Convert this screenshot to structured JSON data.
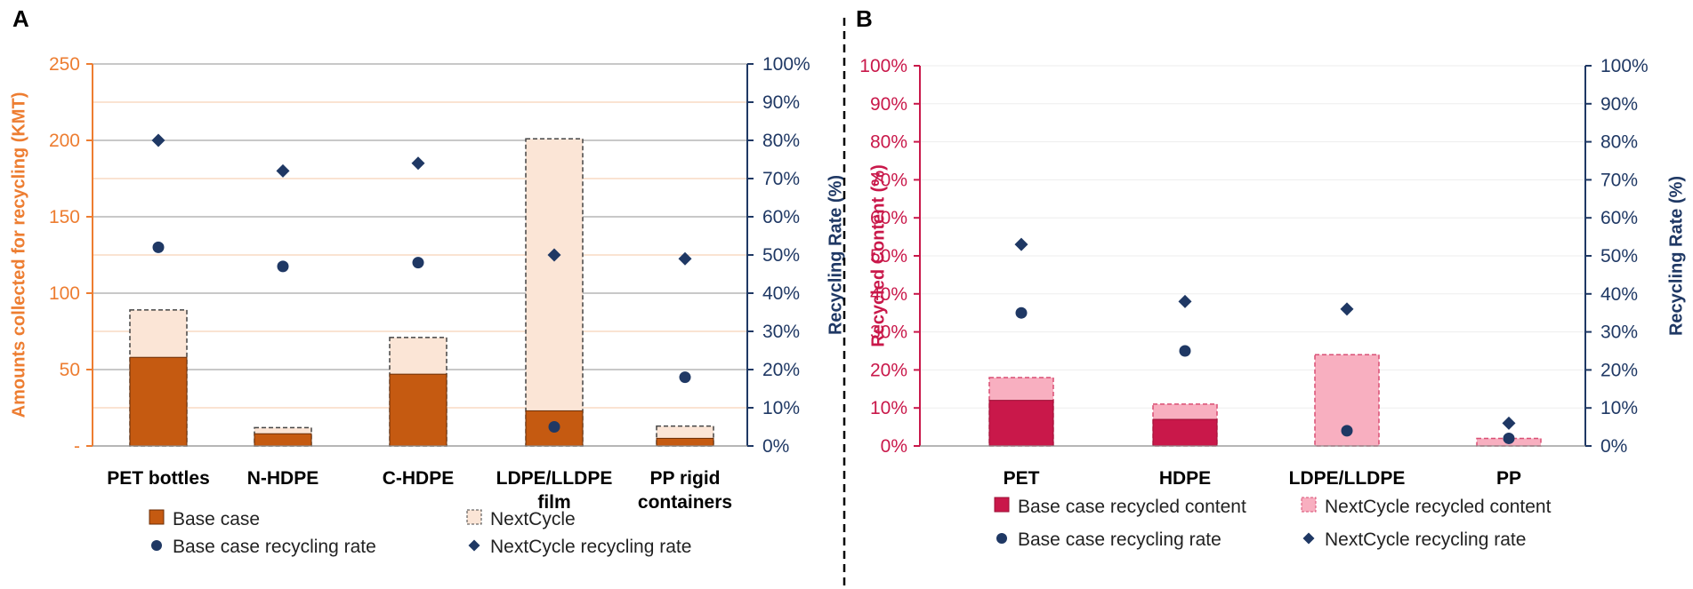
{
  "colors": {
    "orange": "#ED7D31",
    "brown": "#C55A11",
    "peach": "#FBE5D6",
    "navy": "#1F3864",
    "crimson": "#C9184A",
    "pink": "#F8AFC0",
    "divider": "#000000"
  },
  "chart_data": [
    {
      "panel": "A",
      "type": "bar",
      "stacked": true,
      "categories": [
        [
          "PET bottles"
        ],
        [
          "N-HDPE"
        ],
        [
          "C-HDPE"
        ],
        [
          "LDPE/LLDPE",
          "film"
        ],
        [
          "PP rigid",
          "containers"
        ]
      ],
      "series": [
        {
          "name": "Base case",
          "values": [
            58,
            8,
            47,
            23,
            5
          ]
        },
        {
          "name": "NextCycle",
          "values": [
            89,
            12,
            71,
            201,
            13
          ]
        }
      ],
      "points": [
        {
          "name": "Base case recycling rate",
          "marker": "circle",
          "values": [
            52,
            47,
            48,
            5,
            18
          ]
        },
        {
          "name": "NextCycle recycling rate",
          "marker": "diamond",
          "values": [
            80,
            72,
            74,
            50,
            49
          ]
        }
      ],
      "ylabel": "Amounts collected for recycling (KMT)",
      "y2label": "Recycling Rate (%)",
      "ylim": [
        0,
        250
      ],
      "yticks": [
        "-",
        "50",
        "100",
        "150",
        "200",
        "250"
      ],
      "y2lim": [
        0,
        100
      ],
      "y2ticks": [
        "0%",
        "10%",
        "20%",
        "30%",
        "40%",
        "50%",
        "60%",
        "70%",
        "80%",
        "90%",
        "100%"
      ],
      "legend": [
        "Base case",
        "NextCycle",
        "Base case recycling rate",
        "NextCycle recycling rate"
      ]
    },
    {
      "panel": "B",
      "type": "bar",
      "stacked": true,
      "categories": [
        [
          "PET"
        ],
        [
          "HDPE"
        ],
        [
          "LDPE/LLDPE"
        ],
        [
          "PP"
        ]
      ],
      "series": [
        {
          "name": "Base case recycled content",
          "values": [
            12,
            7,
            0,
            0
          ]
        },
        {
          "name": "NextCycle recycled content",
          "values": [
            18,
            11,
            24,
            2
          ]
        }
      ],
      "points": [
        {
          "name": "Base case recycling rate",
          "marker": "circle",
          "values": [
            35,
            25,
            4,
            2
          ]
        },
        {
          "name": "NextCycle recycling rate",
          "marker": "diamond",
          "values": [
            53,
            38,
            36,
            6
          ]
        }
      ],
      "ylabel": "Recycled Content (%)",
      "y2label": "Recycling Rate (%)",
      "ylim": [
        0,
        100
      ],
      "yticks": [
        "0%",
        "10%",
        "20%",
        "30%",
        "40%",
        "50%",
        "60%",
        "70%",
        "80%",
        "90%",
        "100%"
      ],
      "y2lim": [
        0,
        100
      ],
      "y2ticks": [
        "0%",
        "10%",
        "20%",
        "30%",
        "40%",
        "50%",
        "60%",
        "70%",
        "80%",
        "90%",
        "100%"
      ],
      "legend": [
        "Base case recycled content",
        "NextCycle recycled content",
        "Base case recycling rate",
        "NextCycle recycling rate"
      ]
    }
  ]
}
